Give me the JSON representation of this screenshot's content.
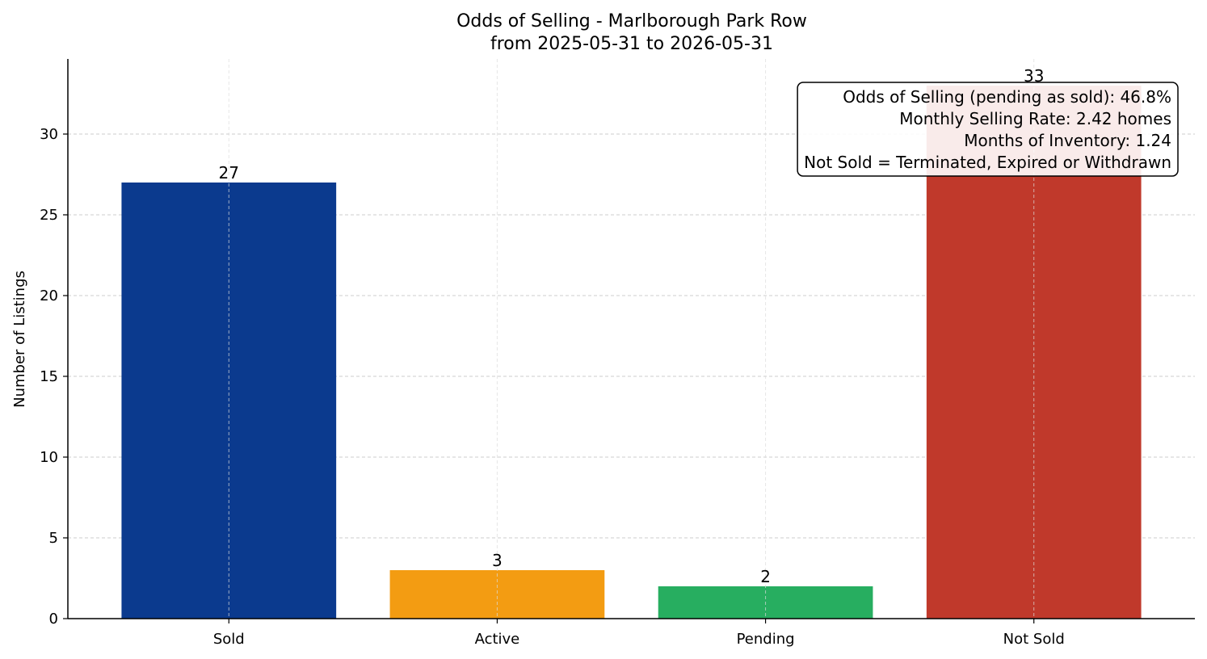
{
  "chart_data": {
    "type": "bar",
    "title": "Odds of Selling - Marlborough Park Row",
    "subtitle": "from 2025-05-31 to 2026-05-31",
    "xlabel": "",
    "ylabel": "Number of Listings",
    "categories": [
      "Sold",
      "Active",
      "Pending",
      "Not Sold"
    ],
    "values": [
      27,
      3,
      2,
      33
    ],
    "data_labels": [
      "27",
      "3",
      "2",
      "33"
    ],
    "colors": [
      "#0b3a8e",
      "#f39c12",
      "#27ae60",
      "#c0392b"
    ],
    "ylim": [
      0,
      34.65
    ],
    "yticks": [
      0,
      5,
      10,
      15,
      20,
      25,
      30
    ],
    "ytick_labels": [
      "0",
      "5",
      "10",
      "15",
      "20",
      "25",
      "30"
    ],
    "grid": true,
    "info_box": {
      "placement": "top-right",
      "lines": [
        "Odds of Selling (pending as sold): 46.8%",
        "Monthly Selling Rate: 2.42 homes",
        "Months of Inventory: 1.24",
        "Not Sold = Terminated, Expired or Withdrawn"
      ]
    }
  }
}
